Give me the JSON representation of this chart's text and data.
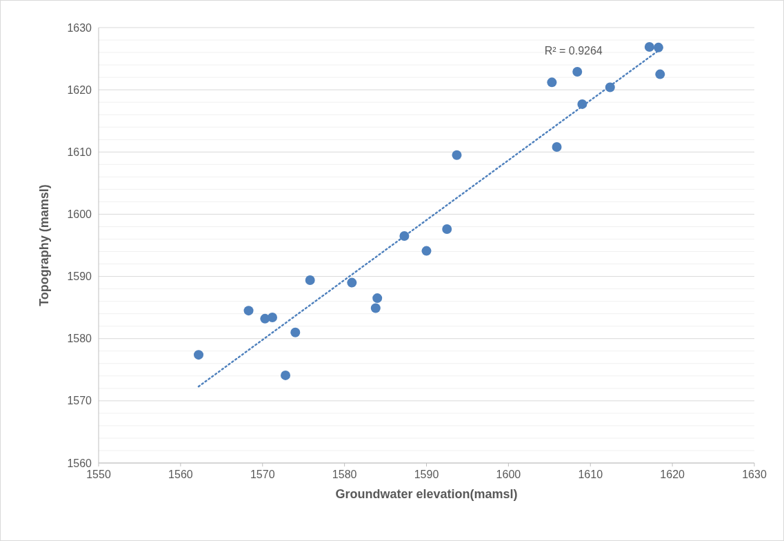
{
  "chart_data": {
    "type": "scatter",
    "xlabel": "Groundwater elevation(mamsl)",
    "ylabel": "Topography (mamsl)",
    "x": [
      1562.2,
      1568.3,
      1570.3,
      1571.2,
      1572.8,
      1574.0,
      1575.8,
      1580.9,
      1583.8,
      1584.0,
      1587.3,
      1590.0,
      1592.5,
      1593.7,
      1605.3,
      1605.9,
      1608.4,
      1609.0,
      1612.4,
      1617.2,
      1618.3,
      1618.5
    ],
    "series": [
      {
        "color": "#4f81bd",
        "values": [
          1577.4,
          1584.5,
          1583.2,
          1583.4,
          1574.1,
          1581.0,
          1589.4,
          1589.0,
          1584.9,
          1586.5,
          1596.5,
          1594.1,
          1597.6,
          1609.5,
          1621.2,
          1610.8,
          1622.9,
          1617.7,
          1620.4,
          1626.9,
          1626.8,
          1622.5
        ],
        "marker": "circle"
      },
      {
        "type": "line",
        "color": "#4f81bd",
        "x": [
          1562.2,
          1618.3
        ],
        "values": [
          1572.3,
          1626.3
        ],
        "line_style": "dotted",
        "marker": "none"
      }
    ],
    "annotations": [
      "R² = 0.9264"
    ],
    "xlim": [
      1550,
      1630
    ],
    "xticks": [
      1550,
      1560,
      1570,
      1580,
      1590,
      1600,
      1610,
      1620,
      1630
    ],
    "ylim": [
      1560,
      1630
    ],
    "yticks": [
      1560,
      {
        "value": 1562,
        "label": null
      },
      {
        "value": 1564,
        "label": null
      },
      {
        "value": 1566,
        "label": null
      },
      {
        "value": 1568,
        "label": null
      },
      1570,
      {
        "value": 1572,
        "label": null
      },
      {
        "value": 1574,
        "label": null
      },
      {
        "value": 1576,
        "label": null
      },
      {
        "value": 1578,
        "label": null
      },
      1580,
      {
        "value": 1582,
        "label": null
      },
      {
        "value": 1584,
        "label": null
      },
      {
        "value": 1586,
        "label": null
      },
      {
        "value": 1588,
        "label": null
      },
      1590,
      {
        "value": 1592,
        "label": null
      },
      {
        "value": 1594,
        "label": null
      },
      {
        "value": 1596,
        "label": null
      },
      {
        "value": 1598,
        "label": null
      },
      1600,
      {
        "value": 1602,
        "label": null
      },
      {
        "value": 1604,
        "label": null
      },
      {
        "value": 1606,
        "label": null
      },
      {
        "value": 1608,
        "label": null
      },
      1610,
      {
        "value": 1612,
        "label": null
      },
      {
        "value": 1614,
        "label": null
      },
      {
        "value": 1616,
        "label": null
      },
      {
        "value": 1618,
        "label": null
      },
      1620,
      {
        "value": 1622,
        "label": null
      },
      {
        "value": 1624,
        "label": null
      },
      {
        "value": 1626,
        "label": null
      },
      {
        "value": 1628,
        "label": null
      },
      1630
    ],
    "grid": "y"
  }
}
